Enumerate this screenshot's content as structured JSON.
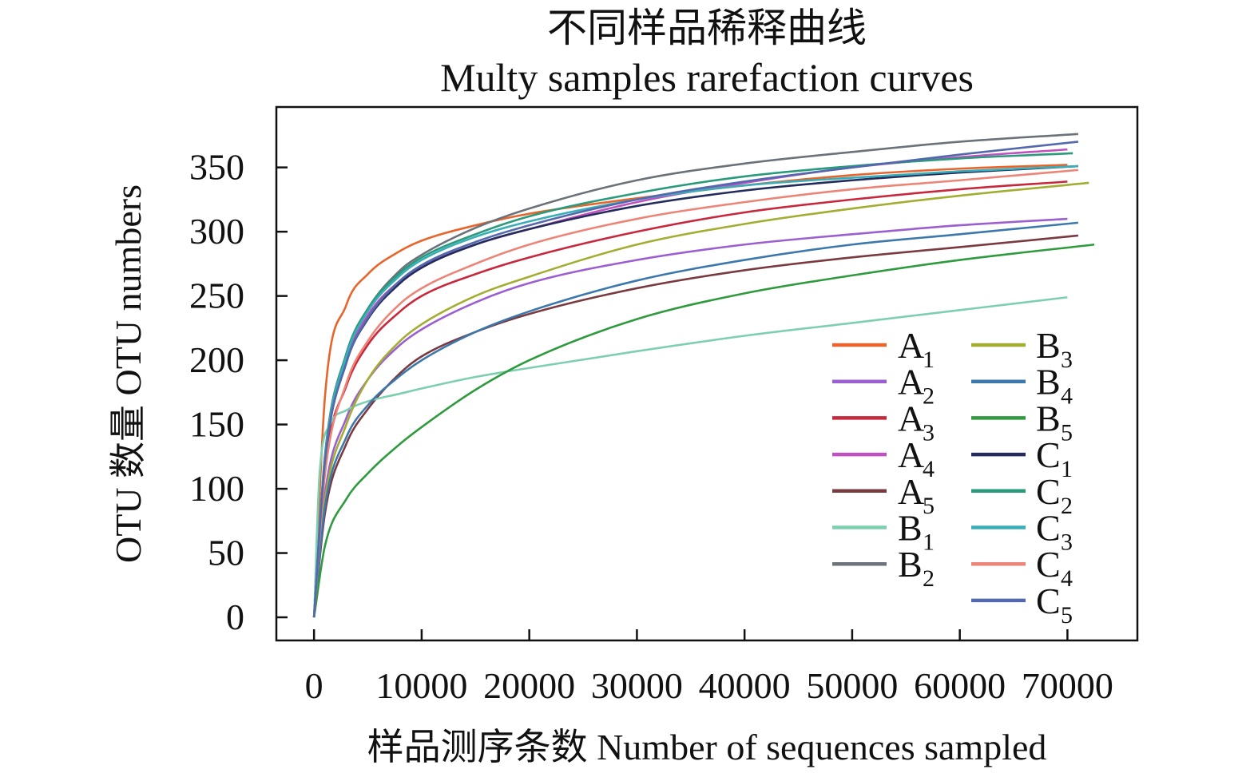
{
  "chart_data": {
    "type": "line",
    "title": "不同样品稀释曲线",
    "subtitle": "Multy samples rarefaction curves",
    "xlabel": "样品测序条数 Number of sequences sampled",
    "ylabel": "OTU 数量 OTU numbers",
    "xlim": [
      -3500,
      76500
    ],
    "ylim": [
      -18,
      397
    ],
    "x_ticks": [
      0,
      10000,
      20000,
      30000,
      40000,
      50000,
      60000,
      70000
    ],
    "x_tick_labels": [
      "0",
      "10000",
      "20000",
      "30000",
      "40000",
      "50000",
      "60000",
      "70000"
    ],
    "y_ticks": [
      0,
      50,
      100,
      150,
      200,
      250,
      300,
      350
    ],
    "y_tick_labels": [
      "0",
      "50",
      "100",
      "150",
      "200",
      "250",
      "300",
      "350"
    ],
    "legend_position": "inside lower-right, two columns",
    "series": [
      {
        "name": "A",
        "sub": "1",
        "color": "#e8642a",
        "x": [
          0,
          1000,
          3000,
          5000,
          8000,
          10000,
          15000,
          20000,
          30000,
          40000,
          50000,
          60000,
          70000
        ],
        "y": [
          0,
          170,
          243,
          267,
          285,
          293,
          305,
          314,
          326,
          336,
          344,
          349,
          352
        ]
      },
      {
        "name": "A",
        "sub": "2",
        "color": "#9b5fd1",
        "x": [
          0,
          1000,
          3000,
          5000,
          8000,
          10000,
          15000,
          20000,
          30000,
          40000,
          50000,
          60000,
          70000
        ],
        "y": [
          0,
          95,
          155,
          185,
          212,
          224,
          245,
          260,
          278,
          290,
          298,
          305,
          310
        ]
      },
      {
        "name": "A",
        "sub": "3",
        "color": "#c8283c",
        "x": [
          0,
          1000,
          3000,
          5000,
          8000,
          10000,
          15000,
          20000,
          30000,
          40000,
          50000,
          60000,
          70000
        ],
        "y": [
          0,
          115,
          180,
          212,
          238,
          250,
          267,
          280,
          300,
          315,
          325,
          333,
          339
        ]
      },
      {
        "name": "A",
        "sub": "4",
        "color": "#c04fc0",
        "x": [
          0,
          1000,
          3000,
          5000,
          8000,
          10000,
          15000,
          20000,
          30000,
          40000,
          50000,
          60000,
          70000
        ],
        "y": [
          0,
          122,
          200,
          235,
          262,
          273,
          290,
          302,
          323,
          338,
          350,
          358,
          364
        ]
      },
      {
        "name": "A",
        "sub": "5",
        "color": "#7a3b40",
        "x": [
          0,
          1000,
          3000,
          5000,
          8000,
          10000,
          15000,
          20000,
          30000,
          40000,
          50000,
          60000,
          71000
        ],
        "y": [
          0,
          80,
          135,
          162,
          190,
          203,
          222,
          236,
          256,
          270,
          280,
          288,
          297
        ]
      },
      {
        "name": "B",
        "sub": "1",
        "color": "#7ecfb0",
        "x": [
          0,
          500,
          1500,
          3000,
          5000,
          8000,
          10000,
          15000,
          20000,
          30000,
          40000,
          50000,
          60000,
          70000
        ],
        "y": [
          0,
          110,
          150,
          161,
          168,
          174,
          178,
          187,
          194,
          207,
          219,
          229,
          239,
          249
        ]
      },
      {
        "name": "B",
        "sub": "2",
        "color": "#6b727a",
        "x": [
          0,
          1000,
          3000,
          5000,
          8000,
          10000,
          15000,
          20000,
          30000,
          40000,
          50000,
          60000,
          71000
        ],
        "y": [
          0,
          125,
          205,
          240,
          270,
          282,
          303,
          318,
          340,
          353,
          362,
          370,
          376
        ]
      },
      {
        "name": "B",
        "sub": "3",
        "color": "#a3ad32",
        "x": [
          0,
          1000,
          3000,
          5000,
          8000,
          10000,
          15000,
          20000,
          30000,
          40000,
          50000,
          60000,
          72000
        ],
        "y": [
          0,
          90,
          150,
          185,
          215,
          228,
          250,
          265,
          290,
          306,
          318,
          328,
          338
        ]
      },
      {
        "name": "B",
        "sub": "4",
        "color": "#3d78ad",
        "x": [
          0,
          1000,
          3000,
          5000,
          8000,
          10000,
          15000,
          20000,
          30000,
          40000,
          50000,
          60000,
          71000
        ],
        "y": [
          0,
          85,
          140,
          165,
          188,
          200,
          222,
          238,
          262,
          278,
          290,
          298,
          307
        ]
      },
      {
        "name": "B",
        "sub": "5",
        "color": "#2f9a3e",
        "x": [
          0,
          1000,
          3000,
          5000,
          8000,
          10000,
          15000,
          20000,
          30000,
          40000,
          50000,
          60000,
          72500
        ],
        "y": [
          0,
          55,
          92,
          112,
          135,
          148,
          177,
          200,
          232,
          252,
          266,
          278,
          290
        ]
      },
      {
        "name": "C",
        "sub": "1",
        "color": "#232c5c",
        "x": [
          0,
          1000,
          3000,
          5000,
          8000,
          10000,
          15000,
          20000,
          30000,
          40000,
          50000,
          60000,
          71000
        ],
        "y": [
          0,
          120,
          198,
          232,
          260,
          272,
          290,
          302,
          320,
          332,
          340,
          346,
          351
        ]
      },
      {
        "name": "C",
        "sub": "2",
        "color": "#2a9a7c",
        "x": [
          0,
          1000,
          3000,
          5000,
          8000,
          10000,
          15000,
          20000,
          30000,
          40000,
          50000,
          60000,
          70500
        ],
        "y": [
          0,
          124,
          205,
          240,
          268,
          280,
          298,
          312,
          330,
          343,
          351,
          357,
          361
        ]
      },
      {
        "name": "C",
        "sub": "3",
        "color": "#3aaeb8",
        "x": [
          0,
          1000,
          3000,
          5000,
          8000,
          10000,
          15000,
          20000,
          30000,
          40000,
          50000,
          60000,
          71000
        ],
        "y": [
          0,
          123,
          203,
          238,
          266,
          278,
          296,
          308,
          325,
          336,
          342,
          347,
          351
        ]
      },
      {
        "name": "C",
        "sub": "4",
        "color": "#ec8578",
        "x": [
          0,
          1000,
          3000,
          5000,
          8000,
          10000,
          15000,
          20000,
          30000,
          40000,
          50000,
          60000,
          71000
        ],
        "y": [
          0,
          110,
          182,
          215,
          244,
          256,
          275,
          290,
          310,
          323,
          333,
          340,
          348
        ]
      },
      {
        "name": "C",
        "sub": "5",
        "color": "#5468ae",
        "x": [
          0,
          1000,
          3000,
          5000,
          8000,
          10000,
          15000,
          20000,
          30000,
          40000,
          50000,
          60000,
          71000
        ],
        "y": [
          0,
          120,
          198,
          233,
          262,
          274,
          292,
          305,
          325,
          339,
          350,
          360,
          370
        ]
      }
    ]
  }
}
